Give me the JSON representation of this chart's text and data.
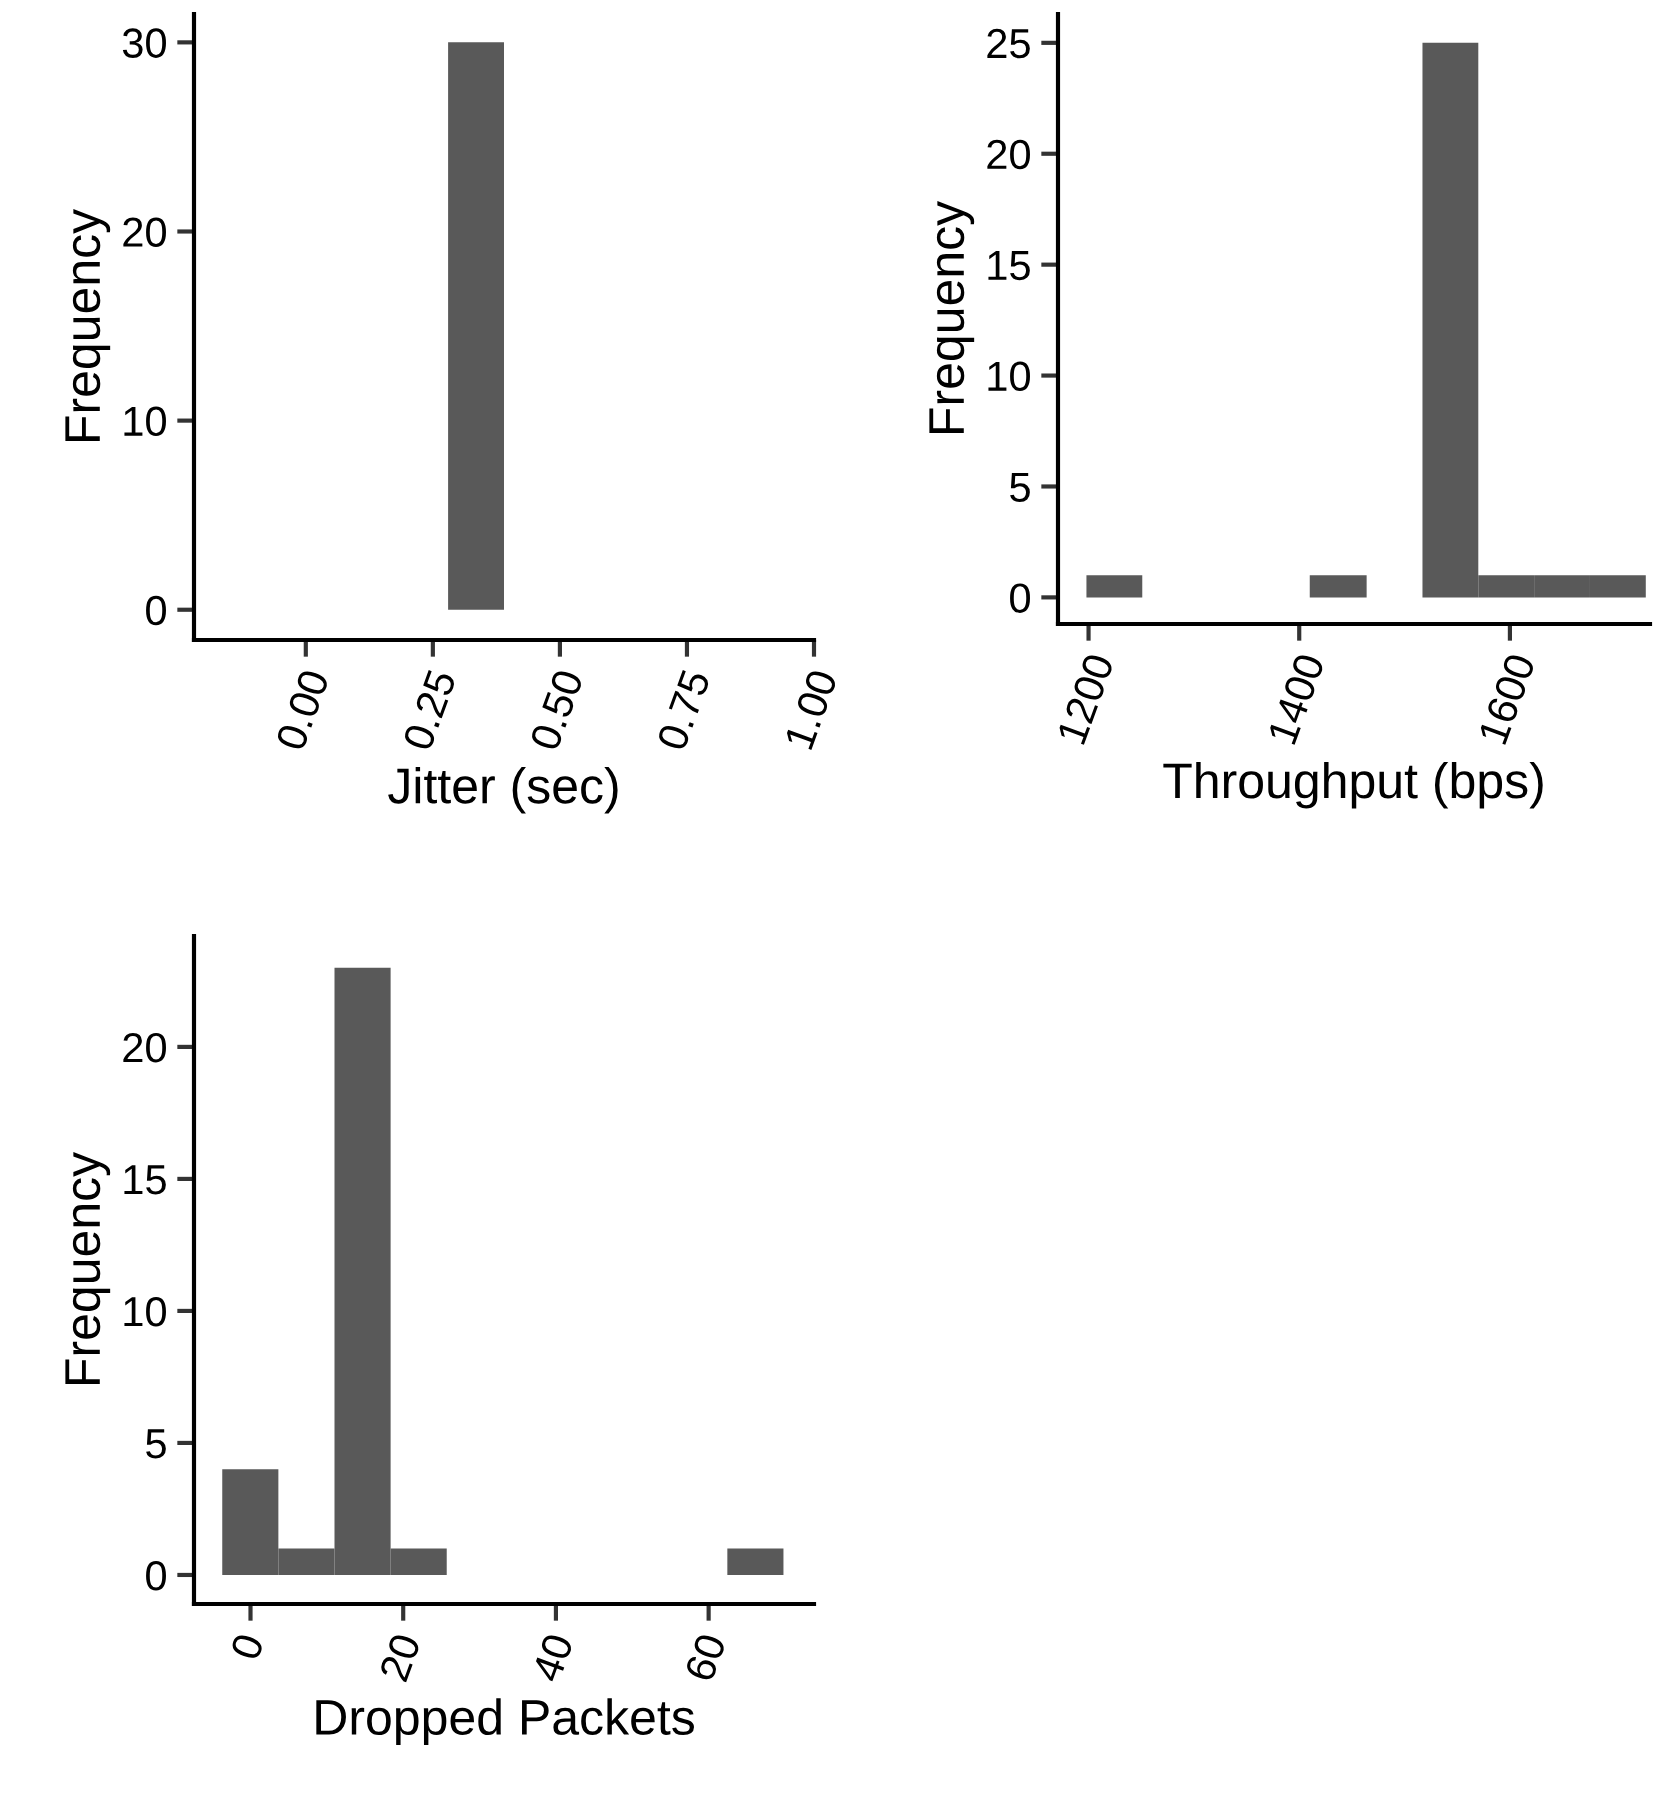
{
  "chart_data": [
    {
      "type": "histogram",
      "xlabel": "Jitter (sec)",
      "ylabel": "Frequency",
      "bins": [
        0.28,
        0.39
      ],
      "values": [
        30
      ],
      "color": "#595959",
      "xlim": [
        -0.22,
        1.0
      ],
      "xticks": [
        {
          "value": 0,
          "label": "0.00"
        },
        {
          "value": 0.25,
          "label": "0.25"
        },
        {
          "value": 0.5,
          "label": "0.50"
        },
        {
          "value": 0.75,
          "label": "0.75"
        },
        {
          "value": 1.0,
          "label": "1.00"
        }
      ],
      "ylim": [
        -1.6,
        31.5
      ],
      "yticks": [
        0,
        10,
        20,
        30
      ],
      "grid": false
    },
    {
      "type": "histogram",
      "xlabel": "Throughput (bps)",
      "ylabel": "Frequency",
      "bins": [
        1198,
        1251,
        1410,
        1464,
        1517,
        1570,
        1623,
        1676,
        1729
      ],
      "values": [
        1,
        0,
        1,
        0,
        25,
        1,
        1,
        1
      ],
      "color": "#595959",
      "xlim": [
        1171,
        1733
      ],
      "xticks": [
        1200,
        1400,
        1600
      ],
      "ylim": [
        -1.2,
        26.3
      ],
      "yticks": [
        0,
        5,
        10,
        15,
        20,
        25
      ],
      "grid": false
    },
    {
      "type": "histogram",
      "xlabel": "Dropped Packets",
      "ylabel": "Frequency",
      "bins": [
        -3.7,
        3.65,
        11,
        18.35,
        25.7,
        62.45,
        69.8
      ],
      "values": [
        4,
        1,
        23,
        1,
        0,
        1
      ],
      "color": "#595959",
      "xlim": [
        -7.4,
        73.8
      ],
      "xticks": [
        0,
        20,
        40,
        60
      ],
      "ylim": [
        -1.1,
        24.2
      ],
      "yticks": [
        0,
        5,
        10,
        15,
        20
      ],
      "grid": false
    }
  ]
}
